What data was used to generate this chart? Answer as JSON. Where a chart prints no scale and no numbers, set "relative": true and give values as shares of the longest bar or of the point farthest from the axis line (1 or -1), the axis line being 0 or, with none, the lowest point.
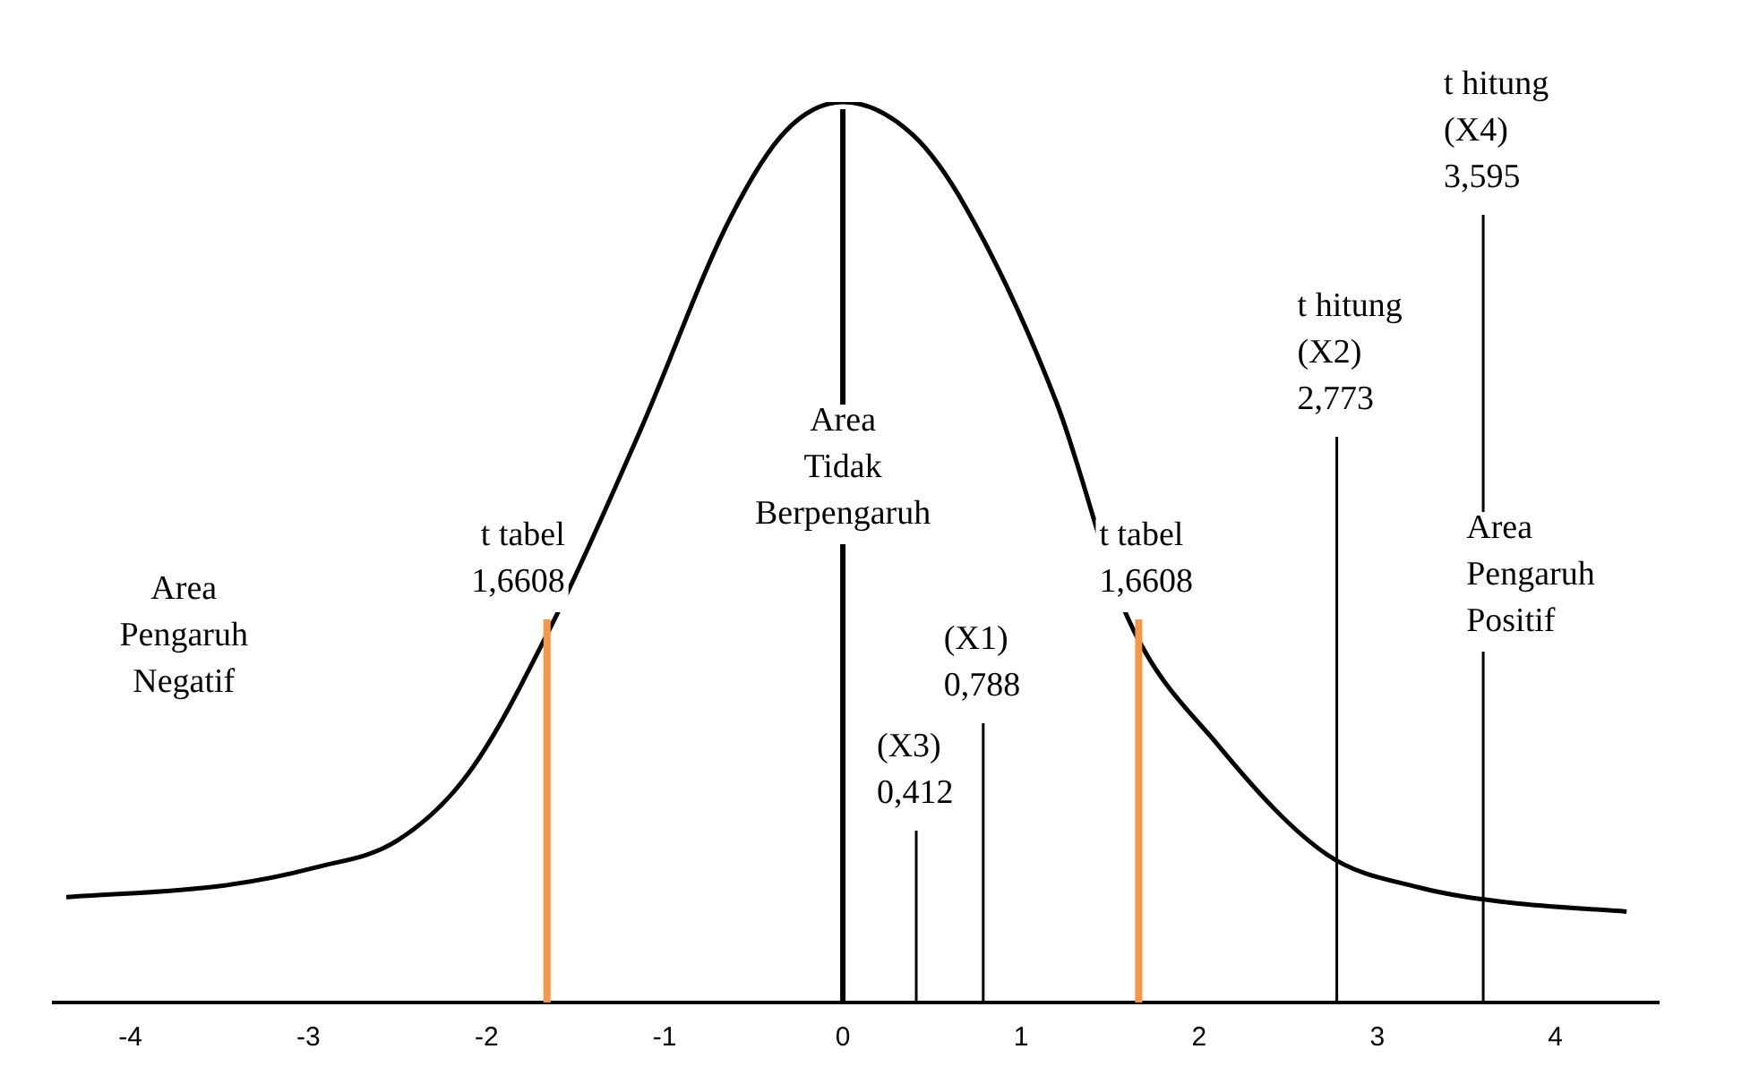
{
  "chart_data": {
    "type": "line",
    "relative": true,
    "marker": "none",
    "xlim": [
      -4.43,
      4.58
    ],
    "xticks": [
      -4,
      -3,
      -2,
      -1,
      0,
      1,
      2,
      3,
      4
    ],
    "series": [
      {
        "color": "#000000",
        "x": [
          -4.36,
          -3.47,
          -2.96,
          -2.5,
          -2.1,
          -1.64,
          -1.14,
          -0.63,
          -0.32,
          0,
          0.39,
          0.69,
          1.2,
          1.6,
          2.11,
          2.72,
          3.23,
          3.74,
          4.4
        ],
        "values": [
          0.117,
          0.13,
          0.15,
          0.18,
          0.255,
          0.417,
          0.634,
          0.872,
          0.968,
          1,
          0.964,
          0.883,
          0.666,
          0.427,
          0.285,
          0.164,
          0.128,
          0.111,
          0.101
        ]
      }
    ],
    "ref_lines": [
      {
        "axis": "x",
        "value": -1.6608,
        "label": "t tabel\n1,6608",
        "color": "#f79646"
      },
      {
        "axis": "x",
        "value": 0,
        "label": "Area\nTidak\nBerpengaruh",
        "color": "#000000"
      },
      {
        "axis": "x",
        "value": 0.412,
        "label": "(X3)\n0,412",
        "color": "#000000"
      },
      {
        "axis": "x",
        "value": 0.788,
        "label": "(X1)\n0,788",
        "color": "#000000"
      },
      {
        "axis": "x",
        "value": 1.6608,
        "label": "t tabel\n1,6608",
        "color": "#f79646"
      },
      {
        "axis": "x",
        "value": 2.773,
        "label": "t hitung\n(X2)\n2,773",
        "color": "#000000"
      },
      {
        "axis": "x",
        "value": 3.595,
        "label": "t hitung\n(X4)\n3,595",
        "color": "#000000"
      }
    ],
    "annotations": [
      "Area\nPengaruh\nNegatif",
      "Area\nPengaruh\nPositif"
    ]
  }
}
